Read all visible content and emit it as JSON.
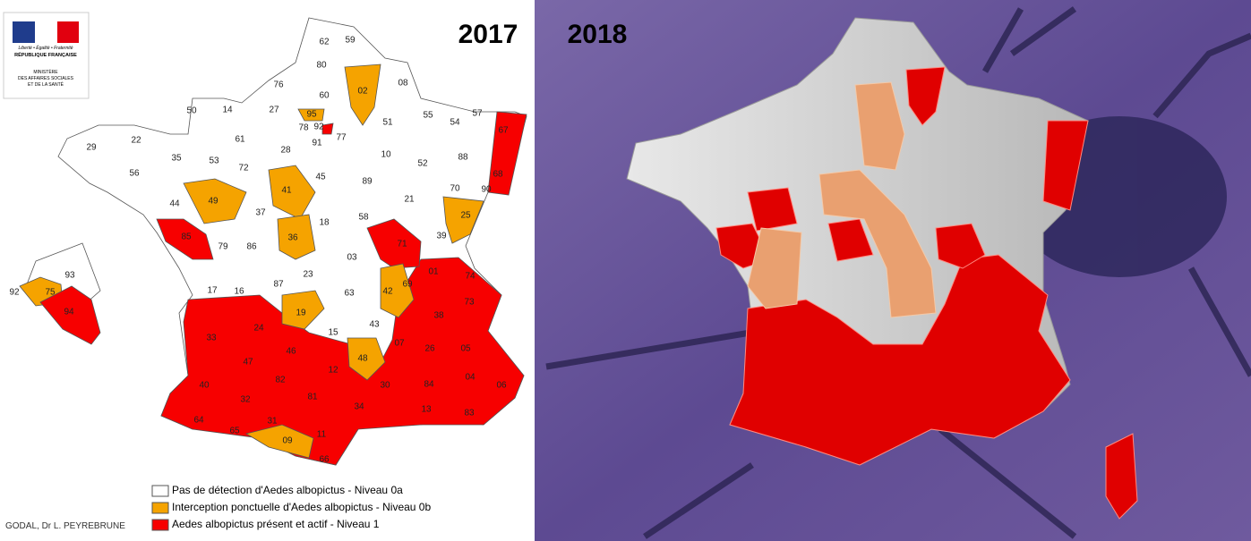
{
  "logo": {
    "motto": "Liberté • Égalité • Fraternité",
    "republic": "RÉPUBLIQUE FRANÇAISE",
    "ministry": [
      "MINISTÈRE",
      "DES AFFAIRES SOCIALES",
      "ET DE LA SANTÉ"
    ]
  },
  "maps": [
    {
      "year": "2017"
    },
    {
      "year": "2018"
    }
  ],
  "departments": [
    "62",
    "59",
    "80",
    "02",
    "08",
    "76",
    "60",
    "50",
    "14",
    "27",
    "95",
    "78",
    "92",
    "77",
    "51",
    "55",
    "54",
    "57",
    "67",
    "29",
    "22",
    "61",
    "28",
    "91",
    "10",
    "52",
    "88",
    "35",
    "53",
    "72",
    "45",
    "89",
    "56",
    "68",
    "70",
    "90",
    "44",
    "49",
    "41",
    "37",
    "18",
    "58",
    "21",
    "25",
    "85",
    "79",
    "86",
    "36",
    "71",
    "39",
    "03",
    "23",
    "01",
    "74",
    "17",
    "16",
    "87",
    "69",
    "42",
    "63",
    "73",
    "19",
    "38",
    "43",
    "15",
    "33",
    "24",
    "07",
    "26",
    "05",
    "47",
    "46",
    "48",
    "12",
    "04",
    "06",
    "40",
    "82",
    "81",
    "30",
    "84",
    "32",
    "34",
    "13",
    "83",
    "64",
    "31",
    "11",
    "65",
    "09",
    "66"
  ],
  "inset_departments": [
    "93",
    "92",
    "75",
    "94"
  ],
  "legend": [
    {
      "label": "Pas de détection d'Aedes albopictus - Niveau 0a",
      "color": "#ffffff"
    },
    {
      "label": "Interception ponctuelle d'Aedes albopictus - Niveau 0b",
      "color": "#f5a300"
    },
    {
      "label": "Aedes albopictus présent et actif - Niveau 1",
      "color": "#f70000"
    }
  ],
  "credit": "GODAL, Dr L. PEYREBRUNE"
}
